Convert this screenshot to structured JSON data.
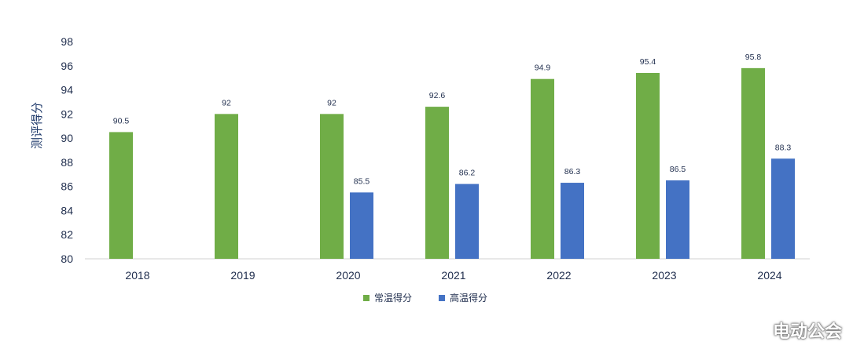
{
  "chart_data": {
    "type": "bar",
    "categories": [
      "2018",
      "2019",
      "2020",
      "2021",
      "2022",
      "2023",
      "2024"
    ],
    "series": [
      {
        "name": "常温得分",
        "color": "#70ad47",
        "values": [
          90.5,
          92,
          92,
          92.6,
          94.9,
          95.4,
          95.8
        ]
      },
      {
        "name": "高温得分",
        "color": "#4472c4",
        "values": [
          null,
          null,
          85.5,
          86.2,
          86.3,
          86.5,
          88.3
        ]
      }
    ],
    "title": "",
    "xlabel": "",
    "ylabel": "测评得分",
    "ylim": [
      80,
      98
    ],
    "yticks": [
      80,
      82,
      84,
      86,
      88,
      90,
      92,
      94,
      96,
      98
    ],
    "grid": false,
    "legend_position": "bottom"
  },
  "watermark": {
    "text": "电动公会",
    "icon": "weibo-icon"
  }
}
